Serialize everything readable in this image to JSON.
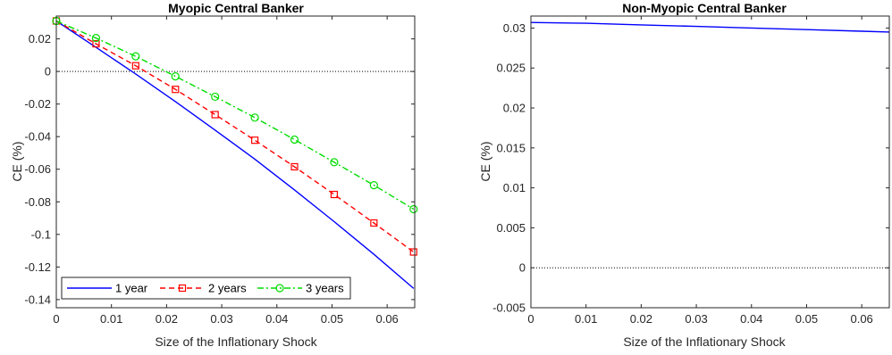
{
  "chart_data": [
    {
      "type": "line",
      "title": "Myopic Central Banker",
      "xlabel": "Size of the Inflationary Shock",
      "ylabel": "CE (%)",
      "xlim": [
        0,
        0.065
      ],
      "ylim": [
        -0.145,
        0.034
      ],
      "xticks": [
        0,
        0.01,
        0.02,
        0.03,
        0.04,
        0.05,
        0.06
      ],
      "xtick_labels": [
        "0",
        "0.01",
        "0.02",
        "0.03",
        "0.04",
        "0.05",
        "0.06"
      ],
      "yticks": [
        0.02,
        0,
        -0.02,
        -0.04,
        -0.06,
        -0.08,
        -0.1,
        -0.12,
        -0.14
      ],
      "ytick_labels": [
        "0.02",
        "0",
        "-0.02",
        "-0.04",
        "-0.06",
        "-0.08",
        "-0.1",
        "-0.12",
        "-0.14"
      ],
      "legend_position": "bottom-left",
      "zero_line": true,
      "series": [
        {
          "name": "1 year",
          "color": "#0000ff",
          "line": "solid",
          "marker": "none",
          "x": [
            0,
            0.0072,
            0.0144,
            0.0216,
            0.0288,
            0.036,
            0.0432,
            0.0504,
            0.0576,
            0.0648
          ],
          "y": [
            0.031,
            0.0148,
            -0.0015,
            -0.0185,
            -0.036,
            -0.0538,
            -0.0727,
            -0.0922,
            -0.1122,
            -0.1332
          ]
        },
        {
          "name": "2 years",
          "color": "#ff0000",
          "line": "dashed",
          "marker": "square",
          "x": [
            0,
            0.0072,
            0.0144,
            0.0216,
            0.0288,
            0.036,
            0.0432,
            0.0504,
            0.0576,
            0.0648
          ],
          "y": [
            0.031,
            0.017,
            0.0035,
            -0.011,
            -0.0265,
            -0.0422,
            -0.0585,
            -0.0755,
            -0.093,
            -0.1108
          ]
        },
        {
          "name": "3 years",
          "color": "#00dd00",
          "line": "dashdot",
          "marker": "circle",
          "x": [
            0,
            0.0072,
            0.0144,
            0.0216,
            0.0288,
            0.036,
            0.0432,
            0.0504,
            0.0576,
            0.0648
          ],
          "y": [
            0.031,
            0.0205,
            0.0093,
            -0.003,
            -0.0155,
            -0.0283,
            -0.0418,
            -0.0557,
            -0.0698,
            -0.0845
          ]
        }
      ]
    },
    {
      "type": "line",
      "title": "Non-Myopic Central Banker",
      "xlabel": "Size of the Inflationary Shock",
      "ylabel": "CE (%)",
      "xlim": [
        0,
        0.065
      ],
      "ylim": [
        -0.005,
        0.0315
      ],
      "xticks": [
        0,
        0.01,
        0.02,
        0.03,
        0.04,
        0.05,
        0.06
      ],
      "xtick_labels": [
        "0",
        "0.01",
        "0.02",
        "0.03",
        "0.04",
        "0.05",
        "0.06"
      ],
      "yticks": [
        0.03,
        0.025,
        0.02,
        0.015,
        0.01,
        0.005,
        0,
        -0.005
      ],
      "ytick_labels": [
        "0.03",
        "0.025",
        "0.02",
        "0.015",
        "0.01",
        "0.005",
        "0",
        "-0.005"
      ],
      "zero_line": true,
      "series": [
        {
          "color": "#0000ff",
          "line": "solid",
          "marker": "none",
          "x": [
            0,
            0.01,
            0.02,
            0.03,
            0.04,
            0.05,
            0.06,
            0.065
          ],
          "y": [
            0.0307,
            0.0306,
            0.0304,
            0.0302,
            0.03,
            0.0298,
            0.0296,
            0.0295
          ]
        }
      ]
    }
  ]
}
